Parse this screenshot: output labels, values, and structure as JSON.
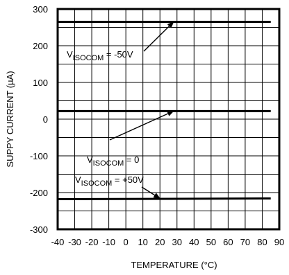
{
  "chart_data": {
    "type": "line",
    "title": "",
    "xlabel": "TEMPERATURE (°C)",
    "ylabel": "SUPPY CURRENT (µA)",
    "xlim": [
      -40,
      90
    ],
    "ylim": [
      -300,
      300
    ],
    "xticks": [
      -40,
      -30,
      -20,
      -10,
      0,
      10,
      20,
      30,
      40,
      50,
      60,
      70,
      80,
      90
    ],
    "yticks": [
      300,
      200,
      100,
      0,
      -100,
      -200,
      -300
    ],
    "grid": true,
    "series": [
      {
        "name": "VISOCOM = -50V",
        "x": [
          -40,
          85
        ],
        "y": [
          265,
          265
        ]
      },
      {
        "name": "VISOCOM = 0",
        "x": [
          -40,
          85
        ],
        "y": [
          22,
          22
        ]
      },
      {
        "name": "VISOCOM = +50V",
        "x": [
          -40,
          85
        ],
        "y": [
          -218,
          -216
        ]
      }
    ],
    "annotations": [
      {
        "prefix": "V",
        "sub": "ISOCOM",
        "suffix": " = -50V",
        "target": [
          28,
          265
        ]
      },
      {
        "prefix": "V",
        "sub": "ISOCOM",
        "suffix": " = 0",
        "target": [
          28,
          22
        ]
      },
      {
        "prefix": "V",
        "sub": "ISOCOM",
        "suffix": " = +50V",
        "target": [
          20,
          -216
        ]
      }
    ]
  }
}
